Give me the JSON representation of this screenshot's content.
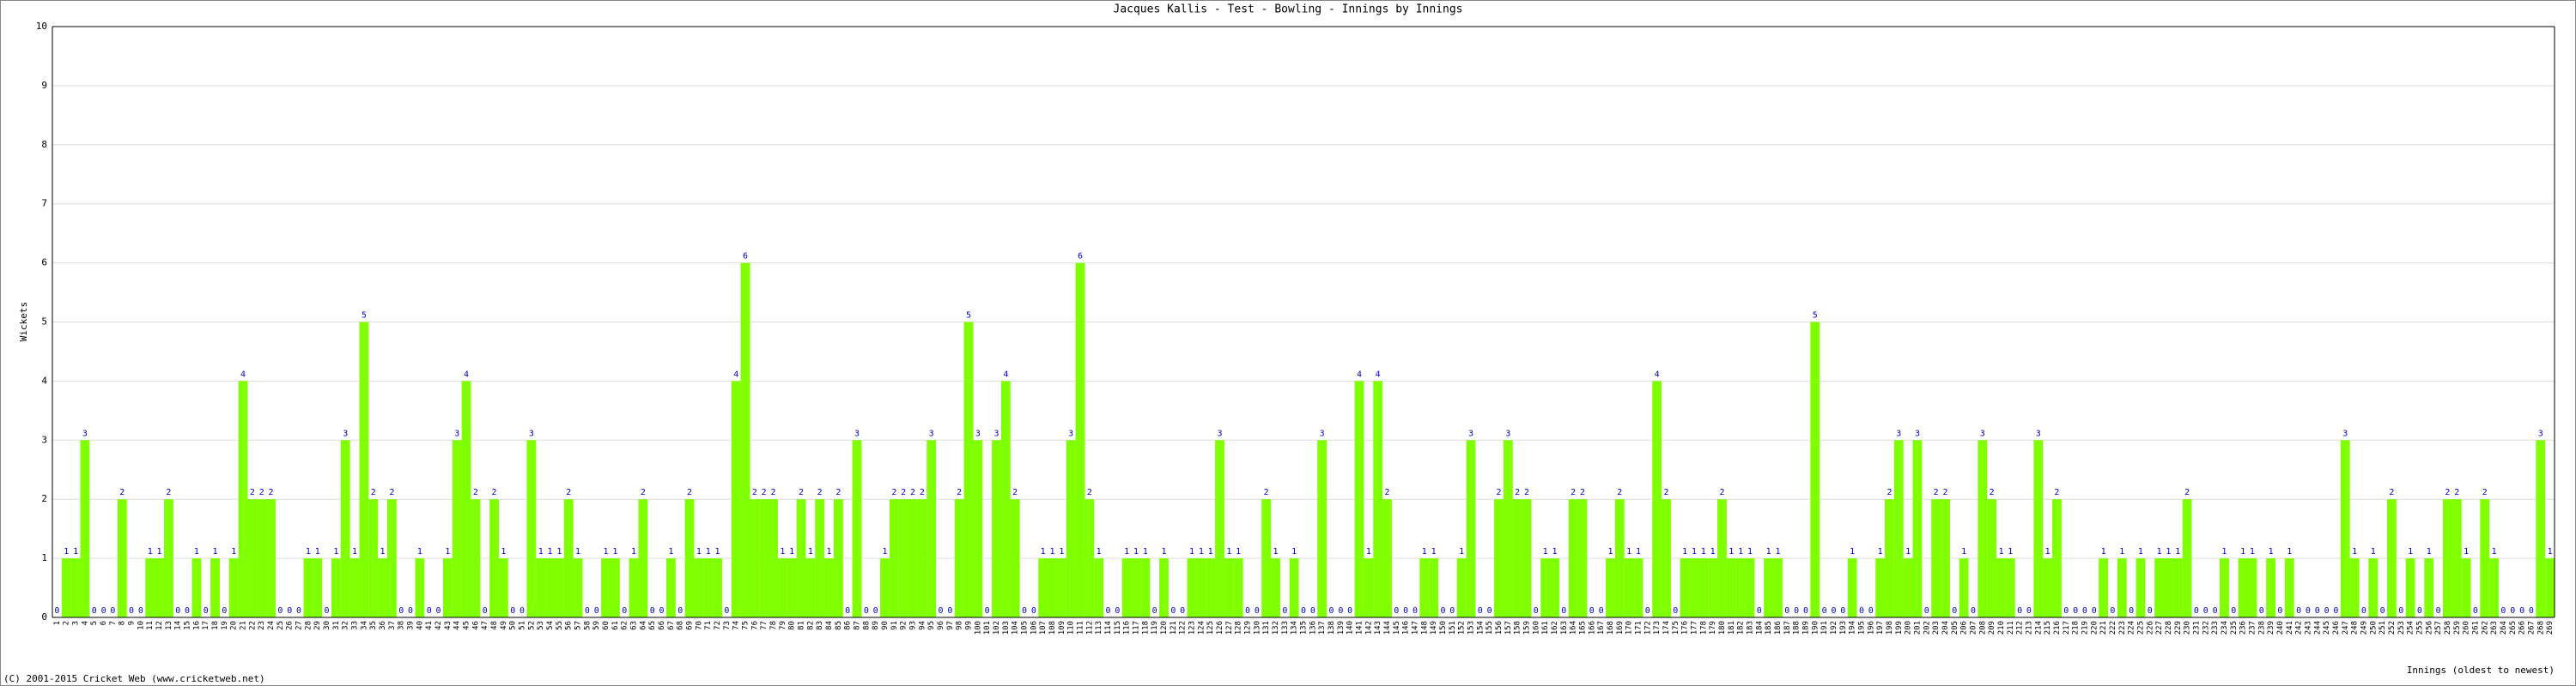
{
  "chart_data": {
    "type": "bar",
    "title": "Jacques Kallis - Test - Bowling - Innings by Innings",
    "y_label": "Wickets",
    "x_note": "Innings (oldest to newest)",
    "footer": "(C) 2001-2015 Cricket Web (www.cricketweb.net)",
    "color": "#80ff00",
    "label_color": "#0000cc",
    "grid": true,
    "ylim": [
      0,
      10
    ],
    "yticks": [
      0,
      1,
      2,
      3,
      4,
      5,
      6,
      7,
      8,
      9,
      10
    ],
    "categories": [
      "1",
      "2",
      "3",
      "4",
      "5",
      "6",
      "7",
      "8",
      "9",
      "10",
      "11",
      "12",
      "13",
      "14",
      "15",
      "16",
      "17",
      "18",
      "19",
      "20",
      "21",
      "22",
      "23",
      "24",
      "25",
      "26",
      "27",
      "28",
      "29",
      "30",
      "31",
      "32",
      "33",
      "34",
      "35",
      "36",
      "37",
      "38",
      "39",
      "40",
      "41",
      "42",
      "43",
      "44",
      "45",
      "46",
      "47",
      "48",
      "49",
      "50",
      "51",
      "52",
      "53",
      "54",
      "55",
      "56",
      "57",
      "58",
      "59",
      "60",
      "61",
      "62",
      "63",
      "64",
      "65",
      "66",
      "67",
      "68",
      "69",
      "70",
      "71",
      "72",
      "73",
      "74",
      "75",
      "76",
      "77",
      "78",
      "79",
      "80",
      "81",
      "82",
      "83",
      "84",
      "85",
      "86",
      "87",
      "88",
      "89",
      "90",
      "91",
      "92",
      "93",
      "94",
      "95",
      "96",
      "97",
      "98",
      "99",
      "100",
      "101",
      "102",
      "103",
      "104",
      "105",
      "106",
      "107",
      "108",
      "109",
      "110",
      "111",
      "112",
      "113",
      "114",
      "115",
      "116",
      "117",
      "118",
      "119",
      "120",
      "121",
      "122",
      "123",
      "124",
      "125",
      "126",
      "127",
      "128",
      "129",
      "130",
      "131",
      "132",
      "133",
      "134",
      "135",
      "136",
      "137",
      "138",
      "139",
      "140",
      "141",
      "142",
      "143",
      "144",
      "145",
      "146",
      "147",
      "148",
      "149",
      "150",
      "151",
      "152",
      "153",
      "154",
      "155",
      "156",
      "157",
      "158",
      "159",
      "160",
      "161",
      "162",
      "163",
      "164",
      "165",
      "166",
      "167",
      "168",
      "169",
      "170",
      "171",
      "172",
      "173",
      "174",
      "175",
      "176",
      "177",
      "178",
      "179",
      "180",
      "181",
      "182",
      "183",
      "184",
      "185",
      "186",
      "187",
      "188",
      "189",
      "190",
      "191",
      "192",
      "193",
      "194",
      "195",
      "196",
      "197",
      "198",
      "199",
      "200",
      "201",
      "202",
      "203",
      "204",
      "205",
      "206",
      "207",
      "208",
      "209",
      "210",
      "211",
      "212",
      "213",
      "214",
      "215",
      "216",
      "217",
      "218",
      "219",
      "220",
      "221",
      "222",
      "223",
      "224",
      "225",
      "226",
      "227",
      "228",
      "229",
      "230",
      "231",
      "232",
      "233",
      "234",
      "235",
      "236",
      "237",
      "238",
      "239",
      "240",
      "241",
      "242",
      "243",
      "244",
      "245",
      "246",
      "247",
      "248",
      "249",
      "250",
      "251",
      "252",
      "253",
      "254",
      "255",
      "256",
      "257",
      "258",
      "259",
      "260",
      "261",
      "262",
      "263",
      "264",
      "265",
      "266",
      "267",
      "268",
      "269"
    ],
    "values": [
      0,
      1,
      1,
      3,
      0,
      0,
      0,
      2,
      0,
      0,
      1,
      1,
      2,
      0,
      0,
      1,
      0,
      1,
      0,
      1,
      4,
      2,
      2,
      2,
      0,
      0,
      0,
      1,
      1,
      0,
      1,
      3,
      1,
      5,
      2,
      1,
      2,
      0,
      0,
      1,
      0,
      0,
      1,
      3,
      4,
      2,
      0,
      2,
      1,
      0,
      0,
      3,
      1,
      1,
      1,
      2,
      1,
      0,
      0,
      1,
      1,
      0,
      1,
      2,
      0,
      0,
      1,
      0,
      2,
      1,
      1,
      1,
      0,
      4,
      6,
      2,
      2,
      2,
      1,
      1,
      2,
      1,
      2,
      1,
      2,
      0,
      3,
      0,
      0,
      1,
      2,
      2,
      2,
      2,
      3,
      0,
      0,
      2,
      5,
      3,
      0,
      3,
      4,
      2,
      0,
      0,
      1,
      1,
      1,
      3,
      6,
      2,
      1,
      0,
      0,
      1,
      1,
      1,
      0,
      1,
      0,
      0,
      1,
      1,
      1,
      3,
      1,
      1,
      0,
      0,
      2,
      1,
      0,
      1,
      0,
      0,
      3,
      0,
      0,
      0,
      4,
      1,
      4,
      2,
      0,
      0,
      0,
      1,
      1,
      0,
      0,
      1,
      3,
      0,
      0,
      2,
      3,
      2,
      2,
      0,
      1,
      1,
      0,
      2,
      2,
      0,
      0,
      1,
      2,
      1,
      1,
      0,
      4,
      2,
      0,
      1,
      1,
      1,
      1,
      2,
      1,
      1,
      1,
      0,
      1,
      1,
      0,
      0,
      0,
      5,
      0,
      0,
      0,
      1,
      0,
      0,
      1,
      2,
      3,
      1,
      3,
      0,
      2,
      2,
      0,
      1,
      0,
      3,
      2,
      1,
      1,
      0,
      0,
      3,
      1,
      2,
      0,
      0,
      0,
      0,
      1,
      0,
      1,
      0,
      1,
      0,
      1,
      1,
      1,
      2,
      0,
      0,
      0,
      1,
      0,
      1,
      1,
      0,
      1,
      0,
      1,
      0,
      0,
      0,
      0,
      0,
      3,
      1,
      0,
      1,
      0,
      2,
      0,
      1,
      0,
      1,
      0,
      2,
      2,
      1,
      0,
      2,
      1,
      0,
      0,
      0,
      0,
      3,
      1
    ]
  }
}
